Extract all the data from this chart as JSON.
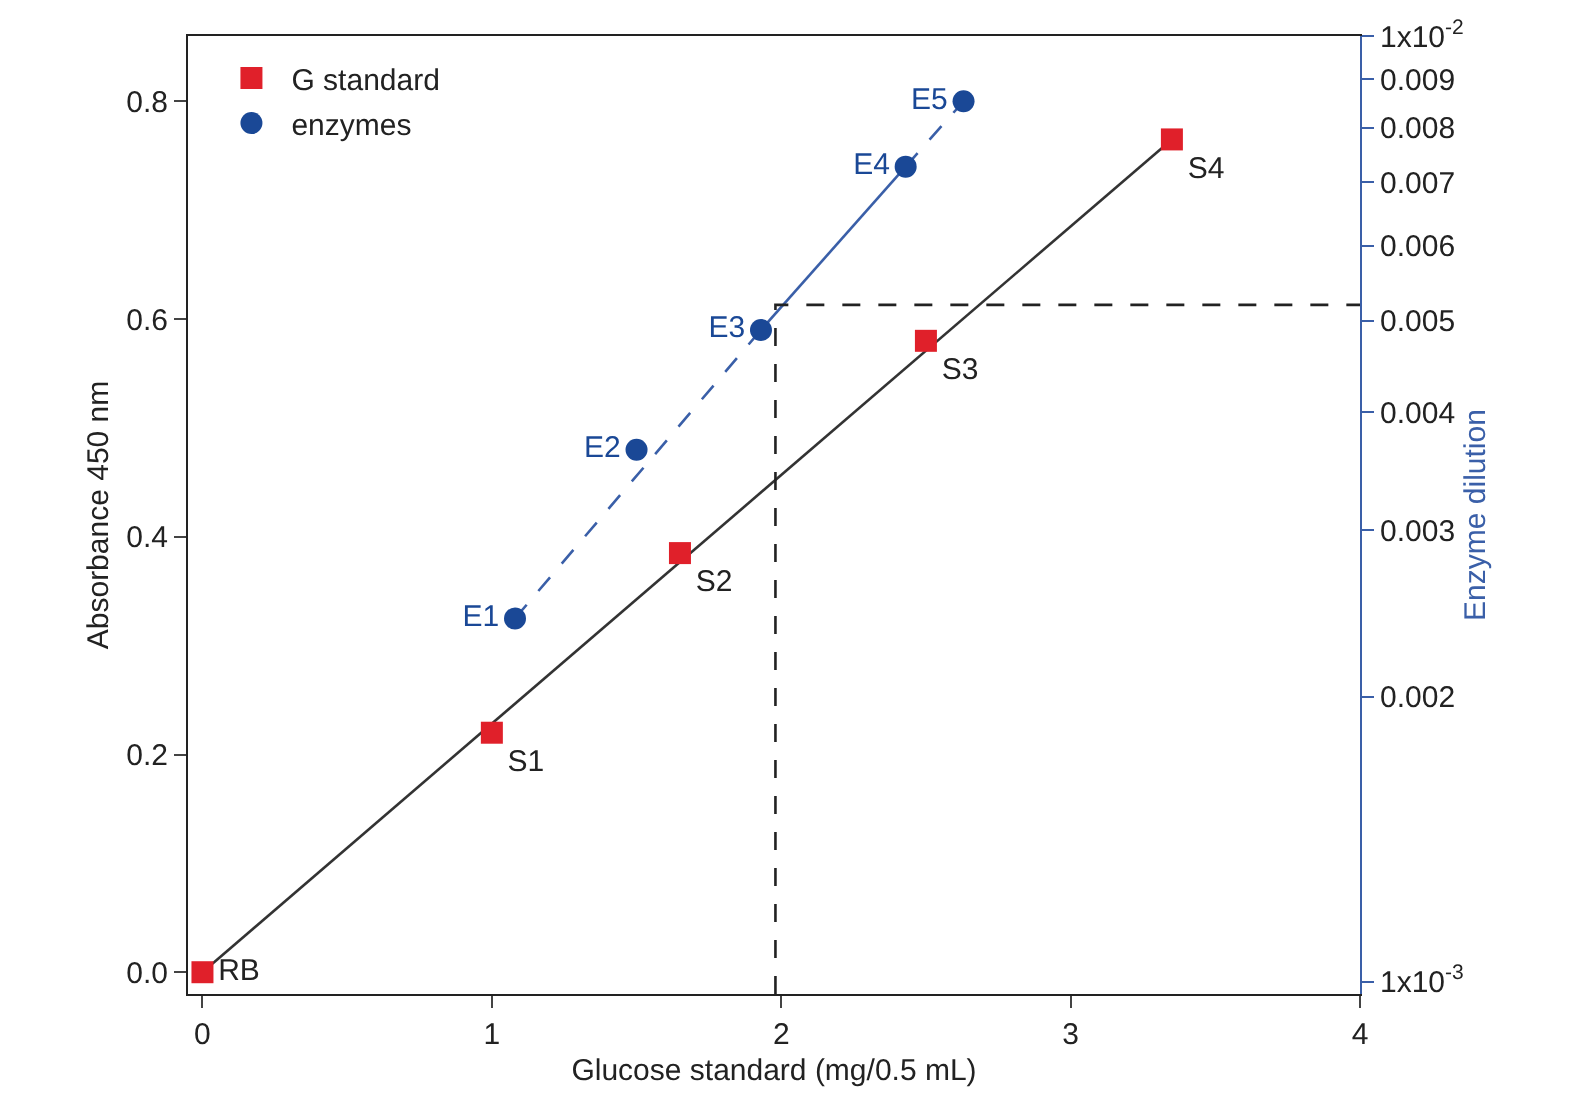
{
  "chart_data": {
    "type": "scatter",
    "xlabel": "Glucose standard (mg/0.5 mL)",
    "ylabel": "Absorbance 450 nm",
    "y2label": "Enzyme dilution",
    "xlim": [
      -0.05,
      4
    ],
    "xticks": [
      0,
      1,
      2,
      3,
      4
    ],
    "ylim": [
      -0.02,
      0.86
    ],
    "yticks": [
      {
        "value": 0,
        "label": "0.0"
      },
      0.2,
      0.4,
      0.6,
      0.8
    ],
    "log": "y2",
    "y2lim": [
      0.00097,
      0.01
    ],
    "y2ticks": [
      {
        "value": 0.001,
        "label": "1x10$^{-3}$"
      },
      0.002,
      0.003,
      0.004,
      0.005,
      0.006,
      0.007,
      0.008,
      0.009,
      {
        "value": 0.01,
        "label": "1x10$^{-2}$"
      }
    ],
    "grid": false,
    "legend": "top left",
    "series": [
      {
        "type": "line",
        "color": "#333333",
        "x": [
          0,
          3.35
        ],
        "values": [
          0,
          0.765
        ],
        "marker": "none",
        "line_style": "solid"
      },
      {
        "type": "line",
        "color": "#3a5fa8",
        "x": [
          1.08,
          1.93
        ],
        "values": [
          0.325,
          0.59
        ],
        "marker": "none",
        "line_style": "dashed"
      },
      {
        "type": "line",
        "color": "#3a5fa8",
        "x": [
          1.93,
          2.43
        ],
        "values": [
          0.59,
          0.74
        ],
        "marker": "none",
        "line_style": "solid"
      },
      {
        "type": "line",
        "color": "#3a5fa8",
        "x": [
          2.43,
          2.63
        ],
        "values": [
          0.74,
          0.8
        ],
        "marker": "none",
        "line_style": "dashed"
      },
      {
        "type": "line",
        "color": "#222222",
        "x": [
          1.98,
          1.98,
          4
        ],
        "values": [
          -0.02,
          0.613,
          0.613
        ],
        "marker": "none",
        "line_style": "dashed"
      },
      {
        "name": "G standard",
        "color": "#e0202a",
        "marker": "square",
        "x": [
          0,
          1,
          1.65,
          2.5,
          3.35
        ],
        "values": [
          0,
          0.22,
          0.385,
          0.58,
          0.765
        ],
        "value_labels": [
          "RB",
          "S1",
          "S2",
          "S3",
          "S4"
        ]
      },
      {
        "name": "enzymes",
        "color": "#1a4896",
        "marker": "circle",
        "x": [
          1.08,
          1.5,
          1.93,
          2.43,
          2.63
        ],
        "values": [
          0.325,
          0.48,
          0.59,
          0.74,
          0.8
        ],
        "value_labels": [
          "E1",
          "E2",
          "E3",
          "E4",
          "E5"
        ]
      }
    ]
  }
}
